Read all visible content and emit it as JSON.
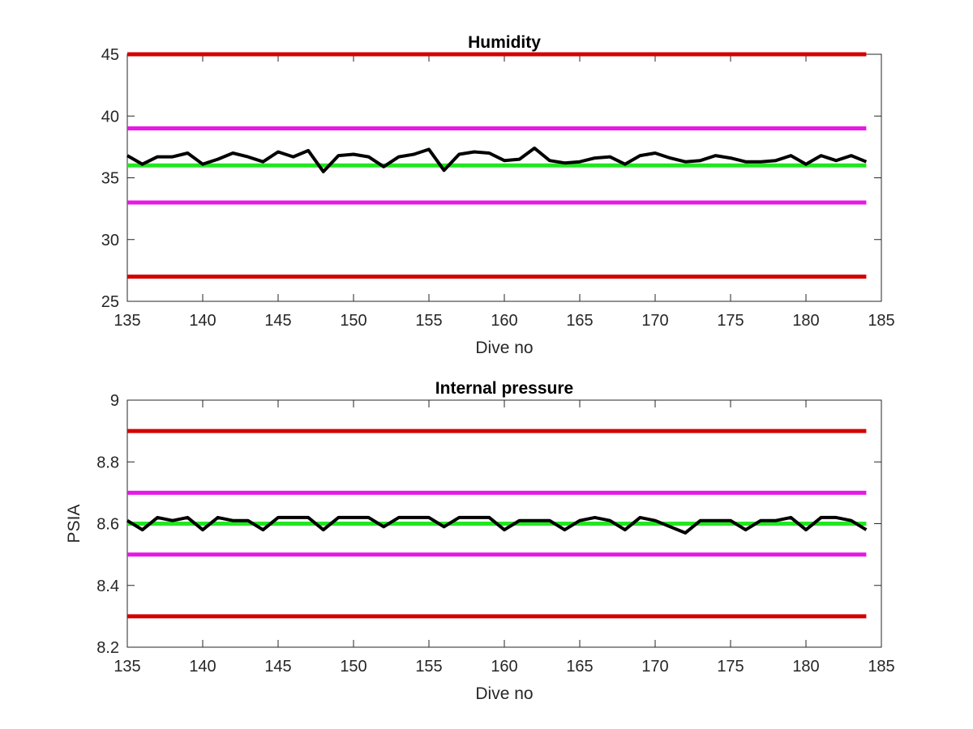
{
  "chart_data": [
    {
      "type": "line",
      "title": "Humidity",
      "xlabel": "Dive no",
      "ylabel": "",
      "xlim": [
        135,
        185
      ],
      "ylim": [
        25,
        45
      ],
      "xticks": [
        135,
        140,
        145,
        150,
        155,
        160,
        165,
        170,
        175,
        180,
        185
      ],
      "yticks": [
        25,
        30,
        35,
        40,
        45
      ],
      "hlines": [
        {
          "value": 45,
          "color": "#d40000",
          "xrange": [
            135,
            184
          ]
        },
        {
          "value": 39,
          "color": "#e619e6",
          "xrange": [
            135,
            184
          ]
        },
        {
          "value": 36,
          "color": "#22e622",
          "xrange": [
            135,
            184
          ]
        },
        {
          "value": 33,
          "color": "#e619e6",
          "xrange": [
            135,
            184
          ]
        },
        {
          "value": 27,
          "color": "#d40000",
          "xrange": [
            135,
            184
          ]
        }
      ],
      "series": [
        {
          "color": "#000000",
          "x": [
            135,
            136,
            137,
            138,
            139,
            140,
            141,
            142,
            143,
            144,
            145,
            146,
            147,
            148,
            149,
            150,
            151,
            152,
            153,
            154,
            155,
            156,
            157,
            158,
            159,
            160,
            161,
            162,
            163,
            164,
            165,
            166,
            167,
            168,
            169,
            170,
            171,
            172,
            173,
            174,
            175,
            176,
            177,
            178,
            179,
            180,
            181,
            182,
            183,
            184
          ],
          "values": [
            36.8,
            36.1,
            36.7,
            36.7,
            37.0,
            36.1,
            36.5,
            37.0,
            36.7,
            36.3,
            37.1,
            36.7,
            37.2,
            35.5,
            36.8,
            36.9,
            36.7,
            35.9,
            36.7,
            36.9,
            37.3,
            35.6,
            36.9,
            37.1,
            37.0,
            36.4,
            36.5,
            37.4,
            36.4,
            36.2,
            36.3,
            36.6,
            36.7,
            36.1,
            36.8,
            37.0,
            36.6,
            36.3,
            36.4,
            36.8,
            36.6,
            36.3,
            36.3,
            36.4,
            36.8,
            36.1,
            36.8,
            36.4,
            36.8,
            36.3
          ]
        }
      ]
    },
    {
      "type": "line",
      "title": "Internal pressure",
      "xlabel": "Dive no",
      "ylabel": "PSIA",
      "xlim": [
        135,
        185
      ],
      "ylim": [
        8.2,
        9.0
      ],
      "xticks": [
        135,
        140,
        145,
        150,
        155,
        160,
        165,
        170,
        175,
        180,
        185
      ],
      "yticks": [
        8.2,
        8.4,
        8.6,
        8.8,
        9.0
      ],
      "ytick_labels": [
        "8.2",
        "8.4",
        "8.6",
        "8.8",
        "9"
      ],
      "hlines": [
        {
          "value": 8.9,
          "color": "#d40000",
          "xrange": [
            135,
            184
          ]
        },
        {
          "value": 8.7,
          "color": "#e619e6",
          "xrange": [
            135,
            184
          ]
        },
        {
          "value": 8.6,
          "color": "#22e622",
          "xrange": [
            135,
            184
          ]
        },
        {
          "value": 8.5,
          "color": "#e619e6",
          "xrange": [
            135,
            184
          ]
        },
        {
          "value": 8.3,
          "color": "#d40000",
          "xrange": [
            135,
            184
          ]
        }
      ],
      "series": [
        {
          "color": "#000000",
          "x": [
            135,
            136,
            137,
            138,
            139,
            140,
            141,
            142,
            143,
            144,
            145,
            146,
            147,
            148,
            149,
            150,
            151,
            152,
            153,
            154,
            155,
            156,
            157,
            158,
            159,
            160,
            161,
            162,
            163,
            164,
            165,
            166,
            167,
            168,
            169,
            170,
            171,
            172,
            173,
            174,
            175,
            176,
            177,
            178,
            179,
            180,
            181,
            182,
            183,
            184
          ],
          "values": [
            8.61,
            8.58,
            8.62,
            8.61,
            8.62,
            8.58,
            8.62,
            8.61,
            8.61,
            8.58,
            8.62,
            8.62,
            8.62,
            8.58,
            8.62,
            8.62,
            8.62,
            8.59,
            8.62,
            8.62,
            8.62,
            8.59,
            8.62,
            8.62,
            8.62,
            8.58,
            8.61,
            8.61,
            8.61,
            8.58,
            8.61,
            8.62,
            8.61,
            8.58,
            8.62,
            8.61,
            8.59,
            8.57,
            8.61,
            8.61,
            8.61,
            8.58,
            8.61,
            8.61,
            8.62,
            8.58,
            8.62,
            8.62,
            8.61,
            8.58
          ]
        }
      ]
    }
  ]
}
